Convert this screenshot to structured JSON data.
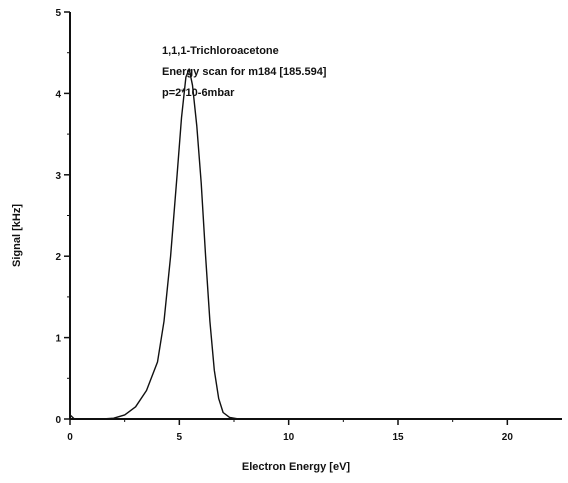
{
  "chart_data": {
    "type": "line",
    "title": "",
    "xlabel": "Electron Energy [eV]",
    "ylabel": "Signal [kHz]",
    "xlim": [
      0,
      22.5
    ],
    "ylim": [
      0,
      5
    ],
    "xticks": [
      0,
      5,
      10,
      15,
      20
    ],
    "yticks": [
      0,
      1,
      2,
      3,
      4,
      5
    ],
    "xtick_labels": [
      "0",
      "5",
      "10",
      "15",
      "20"
    ],
    "ytick_labels": [
      "0",
      "1",
      "2",
      "3",
      "4",
      "5"
    ],
    "grid": false,
    "annotation_lines": [
      "1,1,1-Trichloroacetone",
      "Energy scan for m184 [185.594]",
      "p=2*10-6mbar"
    ],
    "series": [
      {
        "values": [
          [
            0.0,
            0.05
          ],
          [
            0.2,
            0.0
          ],
          [
            0.5,
            0.0
          ],
          [
            1.0,
            0.0
          ],
          [
            1.5,
            0.0
          ],
          [
            2.0,
            0.01
          ],
          [
            2.5,
            0.05
          ],
          [
            3.0,
            0.15
          ],
          [
            3.5,
            0.35
          ],
          [
            4.0,
            0.7
          ],
          [
            4.3,
            1.2
          ],
          [
            4.6,
            2.0
          ],
          [
            4.9,
            3.0
          ],
          [
            5.1,
            3.7
          ],
          [
            5.3,
            4.2
          ],
          [
            5.45,
            4.3
          ],
          [
            5.6,
            4.1
          ],
          [
            5.8,
            3.6
          ],
          [
            6.0,
            2.9
          ],
          [
            6.2,
            2.0
          ],
          [
            6.4,
            1.2
          ],
          [
            6.6,
            0.6
          ],
          [
            6.8,
            0.25
          ],
          [
            7.0,
            0.08
          ],
          [
            7.3,
            0.02
          ],
          [
            7.7,
            0.0
          ],
          [
            10.0,
            0.0
          ],
          [
            15.0,
            0.0
          ],
          [
            20.0,
            0.0
          ],
          [
            22.5,
            0.0
          ]
        ]
      }
    ]
  }
}
